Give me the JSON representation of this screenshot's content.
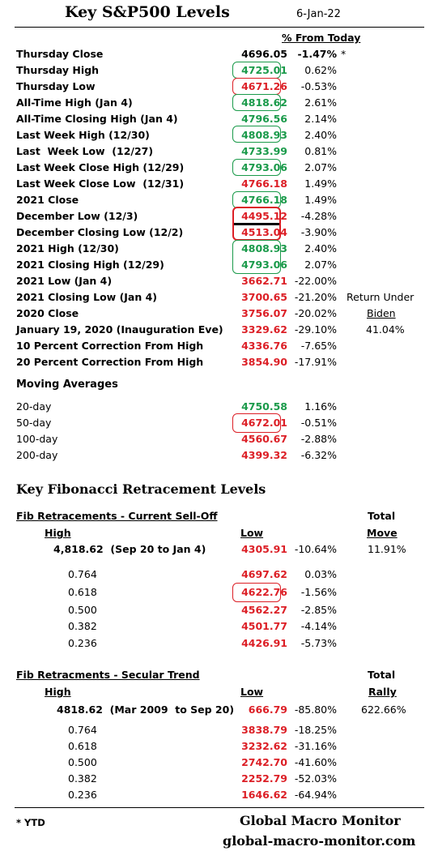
{
  "header": {
    "title": "Key S&P500 Levels",
    "date": "6-Jan-22",
    "pct_header": "% From Today"
  },
  "levels": [
    {
      "label": "Thursday Close",
      "value": "4696.05",
      "pct": "-1.47%",
      "note": "*",
      "color": "black"
    },
    {
      "label": "Thursday High",
      "value": "4725.01",
      "pct": "0.62%",
      "color": "green"
    },
    {
      "label": "Thursday Low",
      "value": "4671.26",
      "pct": "-0.53%",
      "color": "red"
    },
    {
      "label": "All-Time High (Jan 4)",
      "value": "4818.62",
      "pct": "2.61%",
      "color": "green"
    },
    {
      "label": "All-Time Closing High (Jan 4)",
      "value": "4796.56",
      "pct": "2.14%",
      "color": "green"
    },
    {
      "label": "Last Week High (12/30)",
      "value": "4808.93",
      "pct": "2.40%",
      "color": "green"
    },
    {
      "label": "Last  Week Low  (12/27)",
      "value": "4733.99",
      "pct": "0.81%",
      "color": "green"
    },
    {
      "label": "Last Week Close High (12/29)",
      "value": "4793.06",
      "pct": "2.07%",
      "color": "green"
    },
    {
      "label": "Last Week Close Low  (12/31)",
      "value": "4766.18",
      "pct": "1.49%",
      "color": "red"
    },
    {
      "label": "2021 Close",
      "value": "4766.18",
      "pct": "1.49%",
      "color": "green"
    },
    {
      "label": "December Low (12/3)",
      "value": "4495.12",
      "pct": "-4.28%",
      "color": "red"
    },
    {
      "label": "December Closing Low (12/2)",
      "value": "4513.04",
      "pct": "-3.90%",
      "color": "red"
    },
    {
      "label": "2021 High (12/30)",
      "value": "4808.93",
      "pct": "2.40%",
      "color": "green"
    },
    {
      "label": "2021 Closing High (12/29)",
      "value": "4793.06",
      "pct": "2.07%",
      "color": "green"
    },
    {
      "label": "2021 Low (Jan 4)",
      "value": "3662.71",
      "pct": "-22.00%",
      "color": "red"
    },
    {
      "label": "2021 Closing Low (Jan 4)",
      "value": "3700.65",
      "pct": "-21.20%",
      "color": "red"
    },
    {
      "label": "2020 Close",
      "value": "3756.07",
      "pct": "-20.02%",
      "color": "red"
    },
    {
      "label": "January 19, 2020 (Inauguration Eve)",
      "value": "3329.62",
      "pct": "-29.10%",
      "color": "red"
    },
    {
      "label": "10 Percent Correction From High",
      "value": "4336.76",
      "pct": "-7.65%",
      "color": "red"
    },
    {
      "label": "20 Percent Correction From High",
      "value": "3854.90",
      "pct": "-17.91%",
      "color": "red"
    }
  ],
  "return_note": {
    "line1": "Return Under",
    "line2": "Biden",
    "line3": "41.04%"
  },
  "moving_averages": {
    "title": "Moving Averages",
    "rows": [
      {
        "label": "20-day",
        "value": "4750.58",
        "pct": "1.16%",
        "color": "green"
      },
      {
        "label": "50-day",
        "value": "4672.01",
        "pct": "-0.51%",
        "color": "red"
      },
      {
        "label": "100-day",
        "value": "4560.67",
        "pct": "-2.88%",
        "color": "red"
      },
      {
        "label": "200-day",
        "value": "4399.32",
        "pct": "-6.32%",
        "color": "red"
      }
    ]
  },
  "fibonacci": {
    "title": "Key Fibonacci Retracement Levels",
    "selloff": {
      "heading": "Fib Retracements - Current Sell-Off",
      "total_label": "Total",
      "high_label": "High",
      "low_label": "Low",
      "move_label": "Move",
      "high_text": "4,818.62  (Sep 20 to Jan 4)",
      "low_value": "4305.91",
      "low_pct": "-10.64%",
      "total_pct": "11.91%",
      "rows": [
        {
          "level": "0.764",
          "value": "4697.62",
          "pct": "0.03%"
        },
        {
          "level": "0.618",
          "value": "4622.76",
          "pct": "-1.56%"
        },
        {
          "level": "0.500",
          "value": "4562.27",
          "pct": "-2.85%"
        },
        {
          "level": "0.382",
          "value": "4501.77",
          "pct": "-4.14%"
        },
        {
          "level": "0.236",
          "value": "4426.91",
          "pct": "-5.73%"
        }
      ]
    },
    "secular": {
      "heading": "Fib Retracments - Secular Trend",
      "total_label": "Total",
      "high_label": "High",
      "low_label": "Low",
      "rally_label": "Rally",
      "high_text": "4818.62  (Mar 2009  to Sep 20)",
      "low_value": "666.79",
      "low_pct": "-85.80%",
      "total_pct": "622.66%",
      "rows": [
        {
          "level": "0.764",
          "value": "3838.79",
          "pct": "-18.25%"
        },
        {
          "level": "0.618",
          "value": "3232.62",
          "pct": "-31.16%"
        },
        {
          "level": "0.500",
          "value": "2742.70",
          "pct": "-41.60%"
        },
        {
          "level": "0.382",
          "value": "2252.79",
          "pct": "-52.03%"
        },
        {
          "level": "0.236",
          "value": "1646.62",
          "pct": "-64.94%"
        }
      ]
    }
  },
  "footer": {
    "note": "* YTD",
    "brand": "Global Macro Monitor",
    "site": "global-macro-monitor.com"
  },
  "colors": {
    "green": "#1a9a4a",
    "red": "#dc1f26"
  }
}
